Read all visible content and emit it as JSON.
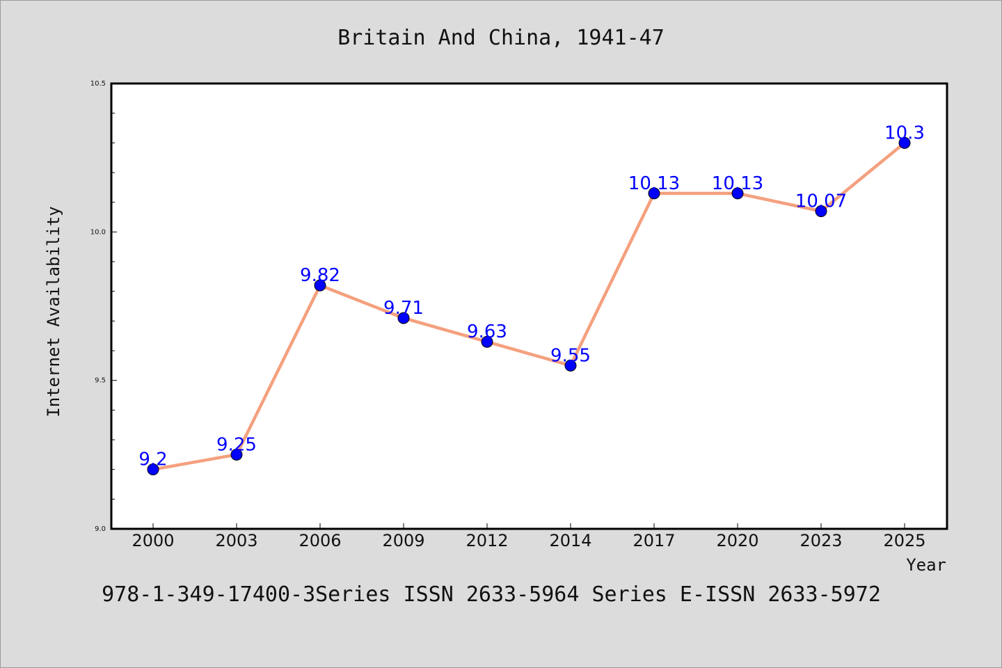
{
  "chart_data": {
    "type": "line",
    "title": "Britain And China, 1941-47",
    "xlabel": "Year",
    "ylabel": "Internet Availability",
    "categories": [
      "2000",
      "2003",
      "2006",
      "2009",
      "2012",
      "2014",
      "2017",
      "2020",
      "2023",
      "2025"
    ],
    "series": [
      {
        "values": [
          9.2,
          9.25,
          9.82,
          9.71,
          9.63,
          9.55,
          10.13,
          10.13,
          10.07,
          10.3
        ],
        "data_labels": [
          "9.2",
          "9.25",
          "9.82",
          "9.71",
          "9.63",
          "9.55",
          "10.13",
          "10.13",
          "10.07",
          "10.3"
        ]
      }
    ],
    "ylim": [
      9.0,
      10.5
    ],
    "yticks": [
      "9.0",
      "9.5",
      "10.0",
      "10.5"
    ],
    "ytick_values": [
      9.0,
      9.5,
      10.0,
      10.5
    ],
    "y_minor_step": 0.1,
    "grid": false,
    "legend": "none",
    "colors": {
      "background": "#dcdcdc",
      "plot_background": "#ffffff",
      "line": "#f4a07e",
      "marker": "#0000ff",
      "data_label": "#0000ff",
      "frame": "#000000"
    }
  },
  "footer": {
    "text": "978-1-349-17400-3Series ISSN 2633-5964 Series E-ISSN 2633-5972"
  }
}
